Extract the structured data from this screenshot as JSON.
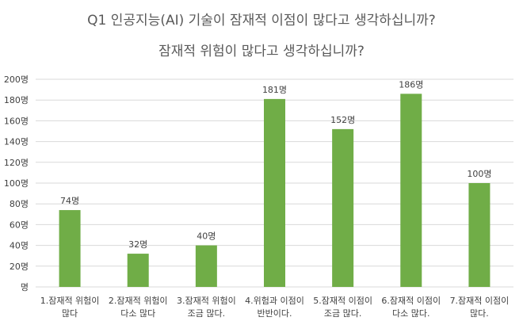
{
  "chart_data": {
    "type": "bar",
    "title": "Q1 인공지능(AI) 기술이 잠재적 이점이 많다고 생각하십니까?",
    "subtitle": "잠재적 위험이 많다고 생각하십니까?",
    "categories": [
      [
        "1.잠재적 위험이",
        "많다"
      ],
      [
        "2.잠재적 위험이",
        "다소 많다"
      ],
      [
        "3.잠재적 위험이",
        "조금 많다."
      ],
      [
        "4.위험과 이점이",
        "반반이다."
      ],
      [
        "5.잠재적 이점이",
        "조금 많다."
      ],
      [
        "6.잠재적 이점이",
        "다소 많다."
      ],
      [
        "7.잠재적 이점이",
        "많다."
      ]
    ],
    "values": [
      74,
      32,
      40,
      181,
      152,
      186,
      100
    ],
    "data_labels": [
      "74명",
      "32명",
      "40명",
      "181명",
      "152명",
      "186명",
      "100명"
    ],
    "ylim": [
      0,
      200
    ],
    "yticks": [
      0,
      20,
      40,
      60,
      80,
      100,
      120,
      140,
      160,
      180,
      200
    ],
    "ytick_labels": [
      "명",
      "20명",
      "40명",
      "60명",
      "80명",
      "100명",
      "120명",
      "140명",
      "160명",
      "180명",
      "200명"
    ],
    "grid": true,
    "bar_color": "#70ad47",
    "xlabel": "",
    "ylabel": ""
  }
}
